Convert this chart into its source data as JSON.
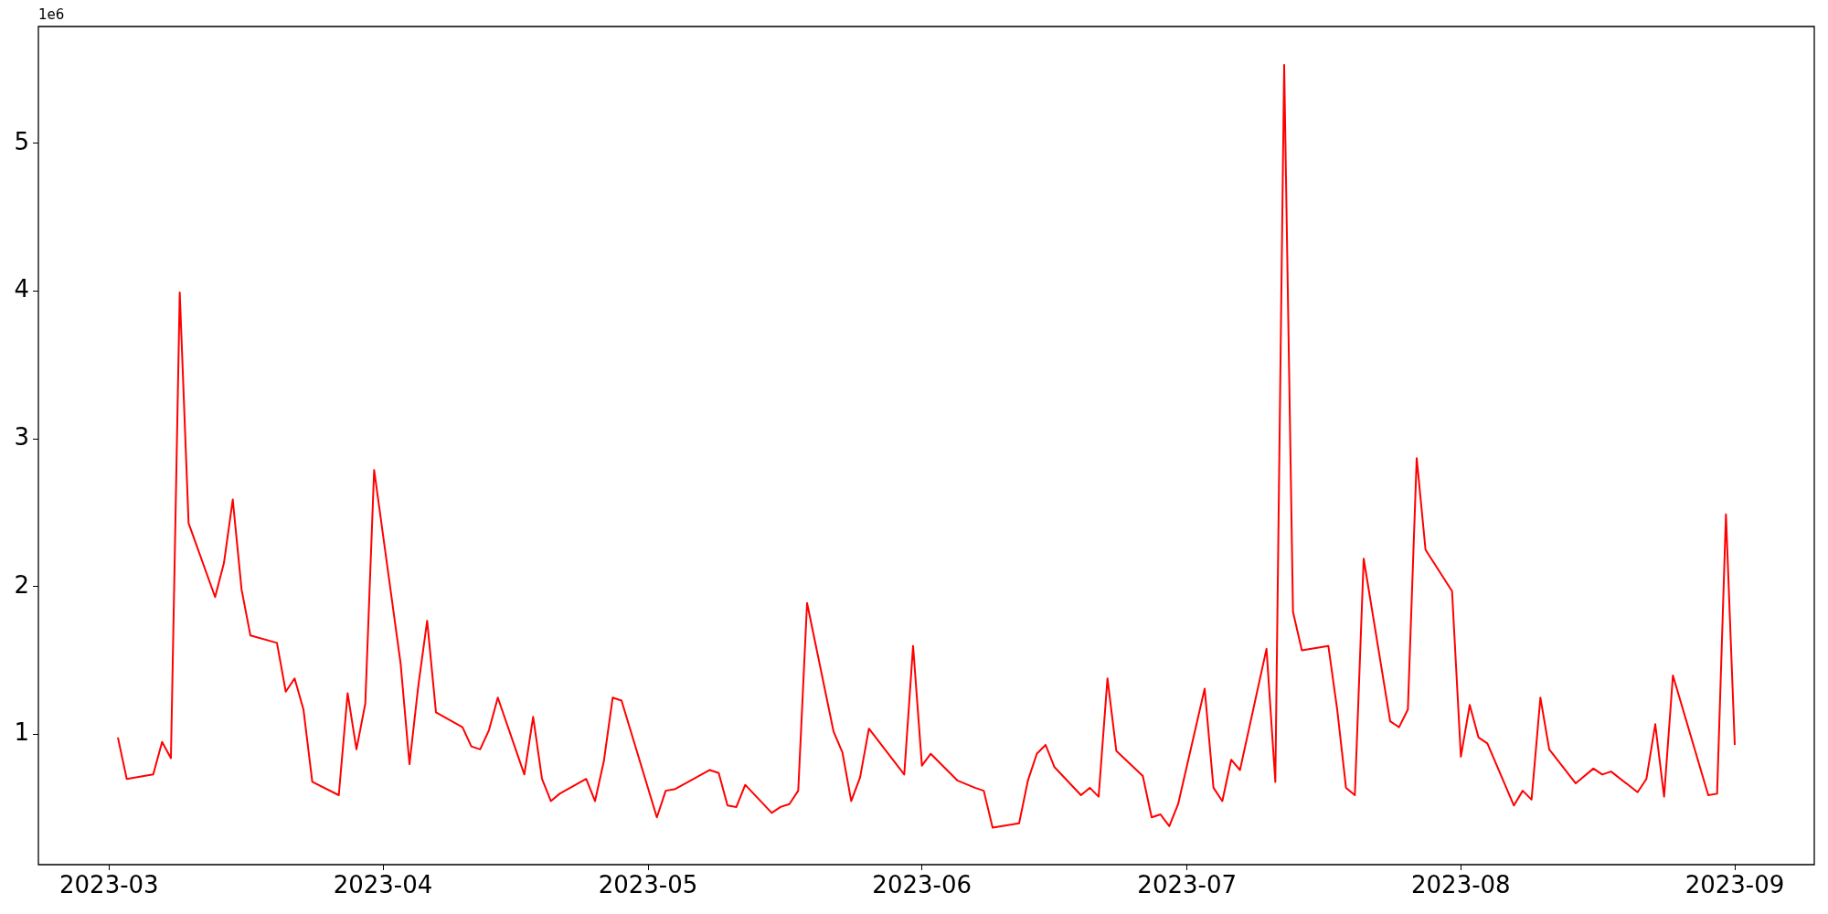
{
  "chart_data": {
    "type": "line",
    "annotations": [
      "1e6"
    ],
    "x": [
      "2023-03-02",
      "2023-03-03",
      "2023-03-06",
      "2023-03-07",
      "2023-03-08",
      "2023-03-09",
      "2023-03-10",
      "2023-03-13",
      "2023-03-14",
      "2023-03-15",
      "2023-03-16",
      "2023-03-17",
      "2023-03-20",
      "2023-03-21",
      "2023-03-22",
      "2023-03-23",
      "2023-03-24",
      "2023-03-27",
      "2023-03-28",
      "2023-03-29",
      "2023-03-30",
      "2023-03-31",
      "2023-04-03",
      "2023-04-04",
      "2023-04-05",
      "2023-04-06",
      "2023-04-07",
      "2023-04-10",
      "2023-04-11",
      "2023-04-12",
      "2023-04-13",
      "2023-04-14",
      "2023-04-17",
      "2023-04-18",
      "2023-04-19",
      "2023-04-20",
      "2023-04-21",
      "2023-04-24",
      "2023-04-25",
      "2023-04-26",
      "2023-04-27",
      "2023-04-28",
      "2023-05-02",
      "2023-05-03",
      "2023-05-04",
      "2023-05-08",
      "2023-05-09",
      "2023-05-10",
      "2023-05-11",
      "2023-05-12",
      "2023-05-15",
      "2023-05-16",
      "2023-05-17",
      "2023-05-18",
      "2023-05-19",
      "2023-05-22",
      "2023-05-23",
      "2023-05-24",
      "2023-05-25",
      "2023-05-26",
      "2023-05-30",
      "2023-05-31",
      "2023-06-01",
      "2023-06-02",
      "2023-06-05",
      "2023-06-07",
      "2023-06-08",
      "2023-06-09",
      "2023-06-12",
      "2023-06-13",
      "2023-06-14",
      "2023-06-15",
      "2023-06-16",
      "2023-06-19",
      "2023-06-20",
      "2023-06-21",
      "2023-06-22",
      "2023-06-23",
      "2023-06-26",
      "2023-06-27",
      "2023-06-28",
      "2023-06-29",
      "2023-06-30",
      "2023-07-03",
      "2023-07-04",
      "2023-07-05",
      "2023-07-06",
      "2023-07-07",
      "2023-07-10",
      "2023-07-11",
      "2023-07-12",
      "2023-07-13",
      "2023-07-14",
      "2023-07-17",
      "2023-07-18",
      "2023-07-19",
      "2023-07-20",
      "2023-07-21",
      "2023-07-24",
      "2023-07-25",
      "2023-07-26",
      "2023-07-27",
      "2023-07-28",
      "2023-07-31",
      "2023-08-01",
      "2023-08-02",
      "2023-08-03",
      "2023-08-04",
      "2023-08-07",
      "2023-08-08",
      "2023-08-09",
      "2023-08-10",
      "2023-08-11",
      "2023-08-14",
      "2023-08-16",
      "2023-08-17",
      "2023-08-18",
      "2023-08-21",
      "2023-08-22",
      "2023-08-23",
      "2023-08-24",
      "2023-08-25",
      "2023-08-29",
      "2023-08-30",
      "2023-08-31",
      "2023-09-01"
    ],
    "series": [
      {
        "color": "#ff0000",
        "values": [
          0.98,
          0.7,
          0.73,
          0.95,
          0.84,
          3.99,
          2.43,
          1.93,
          2.16,
          2.59,
          1.98,
          1.67,
          1.62,
          1.29,
          1.38,
          1.17,
          0.68,
          0.59,
          1.28,
          0.9,
          1.21,
          2.79,
          1.48,
          0.8,
          1.33,
          1.77,
          1.15,
          1.05,
          0.92,
          0.9,
          1.03,
          1.25,
          0.73,
          1.12,
          0.7,
          0.55,
          0.6,
          0.7,
          0.55,
          0.82,
          1.25,
          1.23,
          0.44,
          0.62,
          0.63,
          0.76,
          0.74,
          0.52,
          0.51,
          0.66,
          0.47,
          0.51,
          0.53,
          0.62,
          1.89,
          1.02,
          0.88,
          0.55,
          0.71,
          1.04,
          0.73,
          1.6,
          0.79,
          0.87,
          0.69,
          0.64,
          0.62,
          0.37,
          0.4,
          0.69,
          0.87,
          0.93,
          0.78,
          0.59,
          0.64,
          0.58,
          1.38,
          0.89,
          0.72,
          0.44,
          0.46,
          0.38,
          0.53,
          1.31,
          0.64,
          0.55,
          0.83,
          0.76,
          1.58,
          0.68,
          5.53,
          1.83,
          1.57,
          1.6,
          1.17,
          0.64,
          0.59,
          2.19,
          1.09,
          1.05,
          1.17,
          2.87,
          2.25,
          1.97,
          0.85,
          1.2,
          0.98,
          0.94,
          0.52,
          0.62,
          0.56,
          1.25,
          0.9,
          0.67,
          0.77,
          0.73,
          0.75,
          0.61,
          0.7,
          1.07,
          0.58,
          1.4,
          0.59,
          0.6,
          2.49,
          0.93
        ]
      }
    ],
    "xlim": [
      "2023-02-21",
      "2023-09-10"
    ],
    "xticks": [
      "2023-03",
      "2023-04",
      "2023-05",
      "2023-06",
      "2023-07",
      "2023-08",
      "2023-09"
    ],
    "ylim": [
      0.12,
      5.79
    ],
    "yticks": [
      1,
      2,
      3,
      4,
      5
    ],
    "grid": false,
    "legend": false,
    "marker": "none",
    "line_style": "solid"
  }
}
